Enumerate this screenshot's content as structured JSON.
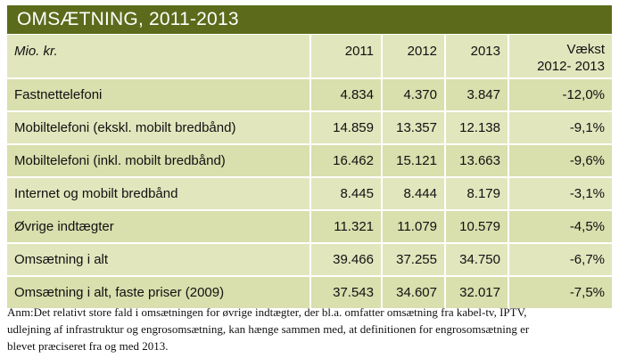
{
  "title": "OMSÆTNING, 2011-2013",
  "table": {
    "header": {
      "unit": "Mio. kr.",
      "years": [
        "2011",
        "2012",
        "2013"
      ],
      "growth_line1": "Vækst",
      "growth_line2": "2012- 2013"
    },
    "rows": [
      {
        "label": "Fastnettelefoni",
        "y2011": "4.834",
        "y2012": "4.370",
        "y2013": "3.847",
        "growth": "-12,0%"
      },
      {
        "label": "Mobiltelefoni (ekskl. mobilt bredbånd)",
        "y2011": "14.859",
        "y2012": "13.357",
        "y2013": "12.138",
        "growth": "-9,1%"
      },
      {
        "label": "Mobiltelefoni (inkl. mobilt bredbånd)",
        "y2011": "16.462",
        "y2012": "15.121",
        "y2013": "13.663",
        "growth": "-9,6%"
      },
      {
        "label": "Internet og mobilt bredbånd",
        "y2011": "8.445",
        "y2012": "8.444",
        "y2013": "8.179",
        "growth": "-3,1%"
      },
      {
        "label": "Øvrige indtægter",
        "y2011": "11.321",
        "y2012": "11.079",
        "y2013": "10.579",
        "growth": "-4,5%"
      },
      {
        "label": "Omsætning i alt",
        "y2011": "39.466",
        "y2012": "37.255",
        "y2013": "34.750",
        "growth": "-6,7%"
      },
      {
        "label": "Omsætning i alt, faste priser (2009)",
        "y2011": "37.543",
        "y2012": "34.607",
        "y2013": "32.017",
        "growth": "-7,5%"
      }
    ]
  },
  "note": {
    "line1": "Anm:Det relativt store fald i omsætningen for øvrige indtægter, der bl.a. omfatter omsætning fra kabel-tv, IPTV,",
    "line2": "udlejning af infrastruktur og engrosomsætning, kan hænge sammen med, at definitionen for engrosomsætning er",
    "line3": "blevet præciseret fra og med 2013."
  },
  "colors": {
    "title_bg": "#5b6b1b",
    "row_dark": "#d9dfad",
    "row_light": "#e2e6bd"
  }
}
